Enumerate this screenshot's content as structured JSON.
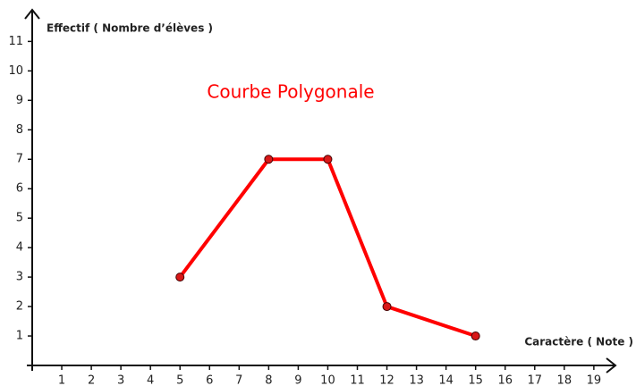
{
  "chart_data": {
    "type": "line",
    "title": "Courbe Polygonale",
    "y_label": "Effectif ( Nombre d’élèves )",
    "x_label": "Caractère ( Note )",
    "x": [
      5,
      8,
      10,
      12,
      15
    ],
    "values": [
      3,
      7,
      7,
      2,
      1
    ],
    "color": "#ff0000",
    "marker_color": "#d81818",
    "xlim": [
      0,
      19.7
    ],
    "ylim": [
      0,
      11.8
    ],
    "xticks": [
      1,
      2,
      3,
      4,
      5,
      6,
      7,
      8,
      9,
      10,
      11,
      12,
      13,
      14,
      15,
      16,
      17,
      18,
      19
    ],
    "yticks": [
      1,
      2,
      3,
      4,
      5,
      6,
      7,
      8,
      9,
      10,
      11
    ]
  }
}
